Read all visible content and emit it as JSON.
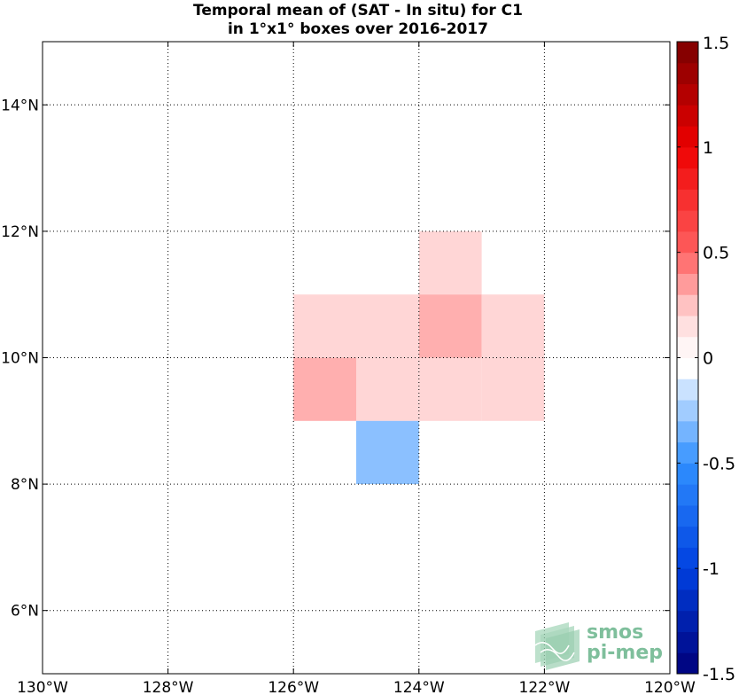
{
  "chart_data": {
    "type": "heatmap",
    "title_line1": "Temporal mean of (SAT - In situ) for C1",
    "title_line2": "in 1°x1° boxes over 2016-2017",
    "xlim": [
      -130,
      -120
    ],
    "ylim": [
      5,
      15
    ],
    "grid": true,
    "x_ticks": [
      {
        "value": -130,
        "label": "130°W"
      },
      {
        "value": -128,
        "label": "128°W"
      },
      {
        "value": -126,
        "label": "126°W"
      },
      {
        "value": -124,
        "label": "124°W"
      },
      {
        "value": -122,
        "label": "122°W"
      },
      {
        "value": -120,
        "label": "120°W"
      }
    ],
    "y_ticks": [
      {
        "value": 6,
        "label": "6°N"
      },
      {
        "value": 8,
        "label": "8°N"
      },
      {
        "value": 10,
        "label": "10°N"
      },
      {
        "value": 12,
        "label": "12°N"
      },
      {
        "value": 14,
        "label": "14°N"
      }
    ],
    "cells": [
      {
        "lon": [
          -124,
          -123
        ],
        "lat": [
          11,
          12
        ],
        "value": 0.2
      },
      {
        "lon": [
          -126,
          -125
        ],
        "lat": [
          10,
          11
        ],
        "value": 0.2
      },
      {
        "lon": [
          -125,
          -124
        ],
        "lat": [
          10,
          11
        ],
        "value": 0.2
      },
      {
        "lon": [
          -124,
          -123
        ],
        "lat": [
          10,
          11
        ],
        "value": 0.3
      },
      {
        "lon": [
          -123,
          -122
        ],
        "lat": [
          10,
          11
        ],
        "value": 0.2
      },
      {
        "lon": [
          -126,
          -125
        ],
        "lat": [
          9,
          10
        ],
        "value": 0.3
      },
      {
        "lon": [
          -125,
          -124
        ],
        "lat": [
          9,
          10
        ],
        "value": 0.2
      },
      {
        "lon": [
          -124,
          -123
        ],
        "lat": [
          9,
          10
        ],
        "value": 0.2
      },
      {
        "lon": [
          -123,
          -122
        ],
        "lat": [
          9,
          10
        ],
        "value": 0.2
      },
      {
        "lon": [
          -125,
          -124
        ],
        "lat": [
          8,
          9
        ],
        "value": -0.3
      }
    ],
    "colorbar": {
      "min": -1.5,
      "max": 1.5,
      "step": 0.1,
      "ticks": [
        {
          "value": 1.5,
          "label": "1.5"
        },
        {
          "value": 1,
          "label": "1"
        },
        {
          "value": 0.5,
          "label": "0.5"
        },
        {
          "value": 0,
          "label": "0"
        },
        {
          "value": -0.5,
          "label": "-0.5"
        },
        {
          "value": -1,
          "label": "-1"
        },
        {
          "value": -1.5,
          "label": "-1.5"
        }
      ],
      "colors": {
        "neg_extreme": "#00007a",
        "neg_strong": "#0040e0",
        "neg_mid": "#3090ff",
        "neg_light": "#b8d8ff",
        "neutral": "#ffffff",
        "pos_light": "#ffd6d6",
        "pos_mid": "#ff6060",
        "pos_strong": "#ee0000",
        "pos_extreme": "#7a0000"
      }
    }
  },
  "logo": {
    "line1": "smos",
    "line2": "pi-mep",
    "color": "#7fbf9c"
  }
}
